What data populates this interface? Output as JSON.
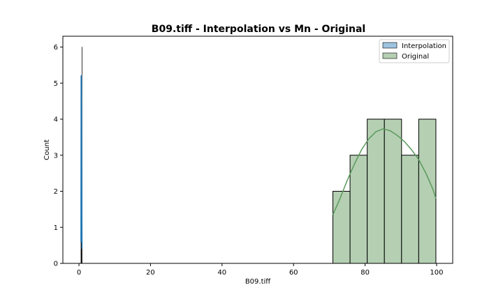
{
  "chart_data": {
    "type": "histogram",
    "title": "B09.tiff - Interpolation vs Mn - Original",
    "xlabel": "B09.tiff",
    "ylabel": "Count",
    "xlim": [
      -4.5,
      104.5
    ],
    "ylim": [
      0,
      6.3
    ],
    "xticks": [
      0,
      20,
      40,
      60,
      80,
      100
    ],
    "yticks": [
      0,
      1,
      2,
      3,
      4,
      5,
      6
    ],
    "legend_position": "top-right",
    "grid": false,
    "series": [
      {
        "name": "Interpolation",
        "color": "#1f77b4",
        "fill": "#9ec3df",
        "bins": [
          {
            "x0": 0.55,
            "x1": 0.6,
            "count": 0.6
          },
          {
            "x0": 0.6,
            "x1": 0.65,
            "count": 5.2
          },
          {
            "x0": 0.65,
            "x1": 0.7,
            "count": 5.2
          },
          {
            "x0": 0.7,
            "x1": 0.75,
            "count": 4.3
          },
          {
            "x0": 0.75,
            "x1": 0.8,
            "count": 2.7
          },
          {
            "x0": 0.8,
            "x1": 0.85,
            "count": 6.0
          }
        ],
        "kde": [
          [
            0.55,
            0.6
          ],
          [
            0.6,
            5.2
          ],
          [
            0.7,
            5.2
          ],
          [
            0.78,
            2.7
          ],
          [
            0.85,
            0.4
          ]
        ]
      },
      {
        "name": "Original",
        "color": "#5a9a5a",
        "fill": "#b5cfb3",
        "bins": [
          {
            "x0": 71,
            "x1": 75.8,
            "count": 2
          },
          {
            "x0": 75.8,
            "x1": 80.6,
            "count": 3
          },
          {
            "x0": 80.6,
            "x1": 85.4,
            "count": 4
          },
          {
            "x0": 85.4,
            "x1": 90.2,
            "count": 4
          },
          {
            "x0": 90.2,
            "x1": 95.0,
            "count": 3
          },
          {
            "x0": 95.0,
            "x1": 99.8,
            "count": 4
          }
        ],
        "kde": [
          [
            71,
            1.35
          ],
          [
            73,
            1.8
          ],
          [
            75,
            2.3
          ],
          [
            77,
            2.75
          ],
          [
            79,
            3.15
          ],
          [
            81,
            3.45
          ],
          [
            83,
            3.65
          ],
          [
            85,
            3.73
          ],
          [
            87,
            3.68
          ],
          [
            89,
            3.55
          ],
          [
            91,
            3.38
          ],
          [
            93,
            3.15
          ],
          [
            95,
            2.88
          ],
          [
            97,
            2.5
          ],
          [
            99,
            2.05
          ],
          [
            99.8,
            1.8
          ]
        ]
      }
    ]
  }
}
